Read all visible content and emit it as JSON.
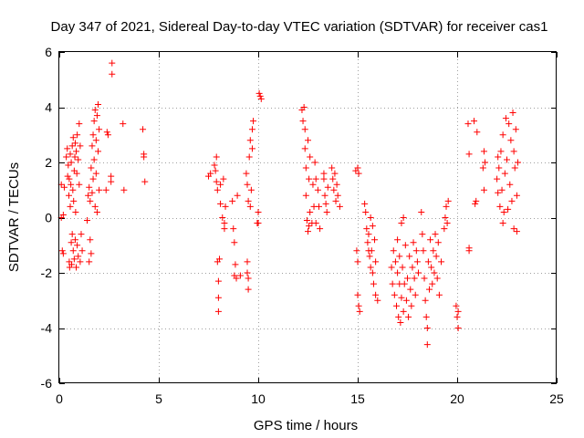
{
  "chart_data": {
    "type": "scatter",
    "title": "Day 347 of 2021, Sidereal Day-to-day VTEC variation (SDTVAR) for receiver cas1",
    "xlabel": "GPS time / hours",
    "ylabel": "SDTVAR / TECUs",
    "xlim": [
      0,
      25
    ],
    "ylim": [
      -6,
      6
    ],
    "xticks": [
      0,
      5,
      10,
      15,
      20,
      25
    ],
    "yticks": [
      -6,
      -4,
      -2,
      0,
      2,
      4,
      6
    ],
    "grid": true,
    "marker": "+",
    "color": "#ff0000",
    "series": [
      {
        "name": "SDTVAR",
        "points": [
          [
            0.1,
            1.2
          ],
          [
            0.1,
            0.0
          ],
          [
            0.15,
            -1.2
          ],
          [
            0.2,
            -1.3
          ],
          [
            0.2,
            0.1
          ],
          [
            0.25,
            1.1
          ],
          [
            0.35,
            2.2
          ],
          [
            0.4,
            2.5
          ],
          [
            0.42,
            1.5
          ],
          [
            0.45,
            1.9
          ],
          [
            0.48,
            0.8
          ],
          [
            0.5,
            1.4
          ],
          [
            0.5,
            -1.6
          ],
          [
            0.52,
            -1.8
          ],
          [
            0.55,
            2.3
          ],
          [
            0.55,
            0.4
          ],
          [
            0.58,
            1.2
          ],
          [
            0.6,
            -0.9
          ],
          [
            0.6,
            2.0
          ],
          [
            0.62,
            -1.7
          ],
          [
            0.65,
            2.6
          ],
          [
            0.65,
            -0.6
          ],
          [
            0.68,
            1.0
          ],
          [
            0.7,
            -1.2
          ],
          [
            0.7,
            2.9
          ],
          [
            0.72,
            0.6
          ],
          [
            0.75,
            1.7
          ],
          [
            0.75,
            -1.5
          ],
          [
            0.78,
            2.2
          ],
          [
            0.8,
            -0.8
          ],
          [
            0.8,
            2.7
          ],
          [
            0.82,
            0.2
          ],
          [
            0.85,
            2.4
          ],
          [
            0.85,
            -1.8
          ],
          [
            0.88,
            1.6
          ],
          [
            0.9,
            3.0
          ],
          [
            0.9,
            -1.0
          ],
          [
            0.95,
            2.1
          ],
          [
            0.95,
            -1.4
          ],
          [
            1.0,
            3.4
          ],
          [
            1.0,
            1.2
          ],
          [
            1.05,
            2.6
          ],
          [
            1.05,
            -1.6
          ],
          [
            1.1,
            -0.6
          ],
          [
            1.15,
            -1.2
          ],
          [
            1.4,
            -0.1
          ],
          [
            1.45,
            0.8
          ],
          [
            1.5,
            1.1
          ],
          [
            1.5,
            -1.6
          ],
          [
            1.55,
            0.6
          ],
          [
            1.55,
            -0.8
          ],
          [
            1.6,
            1.8
          ],
          [
            1.6,
            -1.3
          ],
          [
            1.65,
            2.6
          ],
          [
            1.65,
            0.9
          ],
          [
            1.7,
            3.0
          ],
          [
            1.7,
            1.4
          ],
          [
            1.75,
            3.5
          ],
          [
            1.75,
            2.1
          ],
          [
            1.8,
            3.9
          ],
          [
            1.8,
            0.4
          ],
          [
            1.85,
            2.8
          ],
          [
            1.85,
            1.6
          ],
          [
            1.9,
            3.7
          ],
          [
            1.9,
            0.2
          ],
          [
            1.95,
            4.1
          ],
          [
            1.95,
            2.4
          ],
          [
            2.0,
            3.2
          ],
          [
            2.0,
            1.0
          ],
          [
            2.35,
            1.0
          ],
          [
            2.4,
            3.1
          ],
          [
            2.45,
            3.0
          ],
          [
            2.6,
            1.5
          ],
          [
            2.6,
            1.3
          ],
          [
            2.65,
            5.6
          ],
          [
            2.65,
            5.2
          ],
          [
            3.2,
            3.4
          ],
          [
            3.25,
            1.0
          ],
          [
            4.2,
            3.2
          ],
          [
            4.25,
            2.3
          ],
          [
            4.25,
            2.2
          ],
          [
            4.3,
            1.3
          ],
          [
            7.5,
            1.5
          ],
          [
            7.6,
            1.6
          ],
          [
            7.8,
            1.9
          ],
          [
            7.85,
            1.7
          ],
          [
            7.9,
            2.2
          ],
          [
            7.9,
            1.3
          ],
          [
            7.95,
            1.0
          ],
          [
            7.95,
            -1.6
          ],
          [
            8.0,
            -2.3
          ],
          [
            8.0,
            -2.9
          ],
          [
            8.0,
            -3.4
          ],
          [
            8.05,
            -1.5
          ],
          [
            8.1,
            1.2
          ],
          [
            8.1,
            0.5
          ],
          [
            8.2,
            0.0
          ],
          [
            8.25,
            1.4
          ],
          [
            8.3,
            -0.2
          ],
          [
            8.3,
            -0.4
          ],
          [
            8.35,
            0.4
          ],
          [
            8.7,
            0.6
          ],
          [
            8.75,
            -0.4
          ],
          [
            8.8,
            -0.9
          ],
          [
            8.8,
            -2.1
          ],
          [
            8.85,
            -1.7
          ],
          [
            8.9,
            -2.2
          ],
          [
            8.95,
            0.8
          ],
          [
            9.1,
            -2.1
          ],
          [
            9.4,
            1.6
          ],
          [
            9.45,
            -1.6
          ],
          [
            9.45,
            -2.0
          ],
          [
            9.5,
            -2.6
          ],
          [
            9.5,
            -2.2
          ],
          [
            9.45,
            1.2
          ],
          [
            9.5,
            0.6
          ],
          [
            9.55,
            2.2
          ],
          [
            9.6,
            2.8
          ],
          [
            9.6,
            0.4
          ],
          [
            9.65,
            1.0
          ],
          [
            9.7,
            2.5
          ],
          [
            9.7,
            3.2
          ],
          [
            9.75,
            3.5
          ],
          [
            9.95,
            -0.2
          ],
          [
            10.0,
            0.2
          ],
          [
            10.0,
            -0.2
          ],
          [
            10.05,
            4.5
          ],
          [
            10.1,
            4.4
          ],
          [
            10.15,
            4.3
          ],
          [
            12.2,
            3.9
          ],
          [
            12.25,
            3.5
          ],
          [
            12.3,
            4.0
          ],
          [
            12.35,
            3.2
          ],
          [
            12.35,
            2.5
          ],
          [
            12.4,
            1.8
          ],
          [
            12.4,
            0.8
          ],
          [
            12.45,
            -0.1
          ],
          [
            12.5,
            -0.5
          ],
          [
            12.5,
            2.8
          ],
          [
            12.55,
            -0.3
          ],
          [
            12.55,
            1.4
          ],
          [
            12.6,
            2.2
          ],
          [
            12.6,
            0.2
          ],
          [
            12.7,
            -0.2
          ],
          [
            12.75,
            1.2
          ],
          [
            12.8,
            0.4
          ],
          [
            12.85,
            2.0
          ],
          [
            12.9,
            1.4
          ],
          [
            12.9,
            -0.2
          ],
          [
            13.0,
            1.0
          ],
          [
            13.05,
            0.4
          ],
          [
            13.1,
            -0.4
          ],
          [
            13.3,
            1.4
          ],
          [
            13.3,
            1.6
          ],
          [
            13.35,
            0.8
          ],
          [
            13.4,
            0.5
          ],
          [
            13.45,
            0.2
          ],
          [
            13.5,
            1.1
          ],
          [
            13.7,
            1.8
          ],
          [
            13.75,
            1.4
          ],
          [
            13.8,
            1.0
          ],
          [
            13.85,
            1.6
          ],
          [
            13.9,
            0.6
          ],
          [
            13.95,
            1.2
          ],
          [
            14.0,
            0.8
          ],
          [
            14.1,
            0.4
          ],
          [
            14.9,
            1.7
          ],
          [
            15.0,
            1.8
          ],
          [
            15.05,
            1.6
          ],
          [
            14.95,
            -1.2
          ],
          [
            15.0,
            -1.6
          ],
          [
            15.0,
            -2.8
          ],
          [
            15.05,
            -3.2
          ],
          [
            15.1,
            -3.4
          ],
          [
            15.35,
            0.5
          ],
          [
            15.4,
            0.2
          ],
          [
            15.45,
            -0.4
          ],
          [
            15.5,
            -0.9
          ],
          [
            15.55,
            -1.2
          ],
          [
            15.55,
            -0.6
          ],
          [
            15.6,
            -1.4
          ],
          [
            15.65,
            -1.8
          ],
          [
            15.65,
            0.0
          ],
          [
            15.7,
            -1.2
          ],
          [
            15.75,
            -2.0
          ],
          [
            15.75,
            -0.3
          ],
          [
            15.8,
            -2.4
          ],
          [
            15.85,
            -0.8
          ],
          [
            15.9,
            -2.8
          ],
          [
            15.9,
            -1.6
          ],
          [
            16.0,
            -3.0
          ],
          [
            16.7,
            -1.8
          ],
          [
            16.75,
            -2.4
          ],
          [
            16.8,
            -1.2
          ],
          [
            16.85,
            -2.8
          ],
          [
            16.9,
            -1.6
          ],
          [
            16.95,
            -3.2
          ],
          [
            17.0,
            -2.0
          ],
          [
            17.0,
            -0.8
          ],
          [
            17.05,
            -3.6
          ],
          [
            17.1,
            -2.4
          ],
          [
            17.1,
            -1.4
          ],
          [
            17.15,
            -3.8
          ],
          [
            17.2,
            -2.9
          ],
          [
            17.2,
            -0.2
          ],
          [
            17.25,
            -1.8
          ],
          [
            17.3,
            -3.4
          ],
          [
            17.3,
            0.0
          ],
          [
            17.35,
            -2.4
          ],
          [
            17.4,
            -1.0
          ],
          [
            17.45,
            -3.0
          ],
          [
            17.5,
            -2.2
          ],
          [
            17.55,
            -3.6
          ],
          [
            17.6,
            -1.4
          ],
          [
            17.65,
            -2.6
          ],
          [
            17.7,
            -3.2
          ],
          [
            17.75,
            -1.8
          ],
          [
            17.8,
            -0.9
          ],
          [
            17.85,
            -2.2
          ],
          [
            17.9,
            -2.8
          ],
          [
            17.95,
            -1.2
          ],
          [
            18.0,
            -1.6
          ],
          [
            18.05,
            -2.0
          ],
          [
            18.2,
            0.2
          ],
          [
            18.25,
            -0.6
          ],
          [
            18.3,
            -1.2
          ],
          [
            18.35,
            -2.2
          ],
          [
            18.4,
            -3.0
          ],
          [
            18.45,
            -3.6
          ],
          [
            18.5,
            -4.0
          ],
          [
            18.5,
            -4.6
          ],
          [
            18.55,
            -1.6
          ],
          [
            18.6,
            -2.6
          ],
          [
            18.65,
            -0.8
          ],
          [
            18.7,
            -1.8
          ],
          [
            18.75,
            -2.4
          ],
          [
            18.8,
            -1.2
          ],
          [
            18.85,
            -2.0
          ],
          [
            18.9,
            -0.6
          ],
          [
            18.95,
            -1.4
          ],
          [
            19.0,
            -2.2
          ],
          [
            19.05,
            -0.9
          ],
          [
            19.1,
            -2.8
          ],
          [
            19.2,
            -1.6
          ],
          [
            19.35,
            -0.4
          ],
          [
            19.4,
            0.0
          ],
          [
            19.45,
            0.4
          ],
          [
            19.5,
            -0.2
          ],
          [
            19.55,
            0.6
          ],
          [
            19.95,
            -3.2
          ],
          [
            20.0,
            -3.6
          ],
          [
            20.05,
            -3.4
          ],
          [
            20.05,
            -4.0
          ],
          [
            20.55,
            3.4
          ],
          [
            20.6,
            -1.1
          ],
          [
            20.6,
            -1.2
          ],
          [
            20.6,
            2.3
          ],
          [
            20.85,
            3.5
          ],
          [
            20.9,
            0.5
          ],
          [
            20.95,
            0.6
          ],
          [
            21.0,
            3.1
          ],
          [
            21.3,
            1.8
          ],
          [
            21.35,
            1.0
          ],
          [
            21.35,
            2.4
          ],
          [
            21.4,
            2.0
          ],
          [
            22.0,
            1.4
          ],
          [
            22.05,
            2.2
          ],
          [
            22.05,
            0.9
          ],
          [
            22.1,
            1.8
          ],
          [
            22.15,
            0.4
          ],
          [
            22.2,
            2.4
          ],
          [
            22.25,
            1.0
          ],
          [
            22.3,
            -0.2
          ],
          [
            22.3,
            3.0
          ],
          [
            22.35,
            0.2
          ],
          [
            22.4,
            1.6
          ],
          [
            22.45,
            3.6
          ],
          [
            22.5,
            2.1
          ],
          [
            22.55,
            0.3
          ],
          [
            22.6,
            3.4
          ],
          [
            22.65,
            1.2
          ],
          [
            22.7,
            2.8
          ],
          [
            22.75,
            0.6
          ],
          [
            22.8,
            3.8
          ],
          [
            22.85,
            2.4
          ],
          [
            22.85,
            -0.4
          ],
          [
            22.9,
            1.8
          ],
          [
            22.95,
            3.2
          ],
          [
            23.0,
            0.8
          ],
          [
            23.0,
            -0.5
          ],
          [
            23.05,
            2.0
          ]
        ]
      }
    ]
  }
}
